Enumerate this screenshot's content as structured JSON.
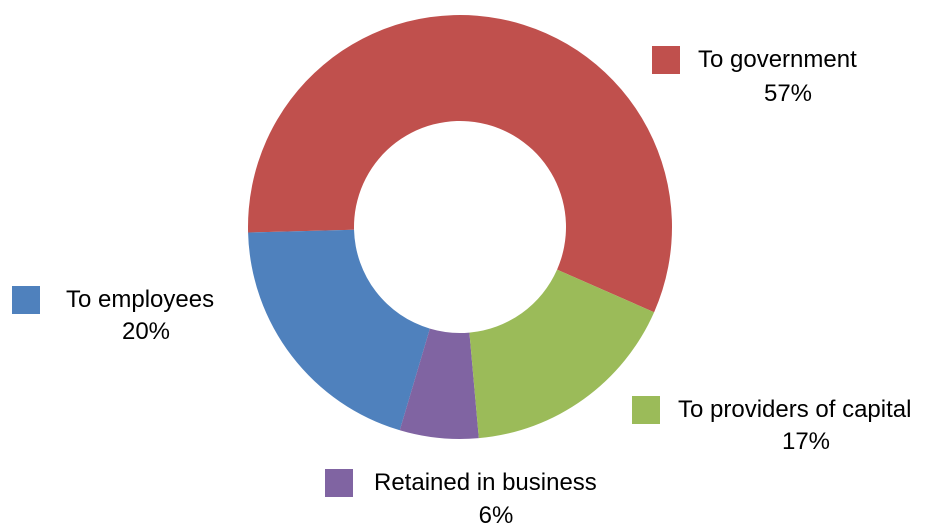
{
  "chart_data": {
    "type": "pie",
    "variant": "doughnut",
    "title": "",
    "start_angle_deg": 90,
    "direction": "counterclockwise",
    "slices": [
      {
        "name": "To government",
        "value": 57,
        "value_label": "57%",
        "color": "#C0504D"
      },
      {
        "name": "To employees",
        "value": 20,
        "value_label": "20%",
        "color": "#4F81BD"
      },
      {
        "name": "Retained in business",
        "value": 6,
        "value_label": "6%",
        "color": "#8064A2"
      },
      {
        "name": "To providers of capital",
        "value": 17,
        "value_label": "17%",
        "color": "#9BBB59"
      }
    ],
    "legend": "labels beside slices"
  }
}
